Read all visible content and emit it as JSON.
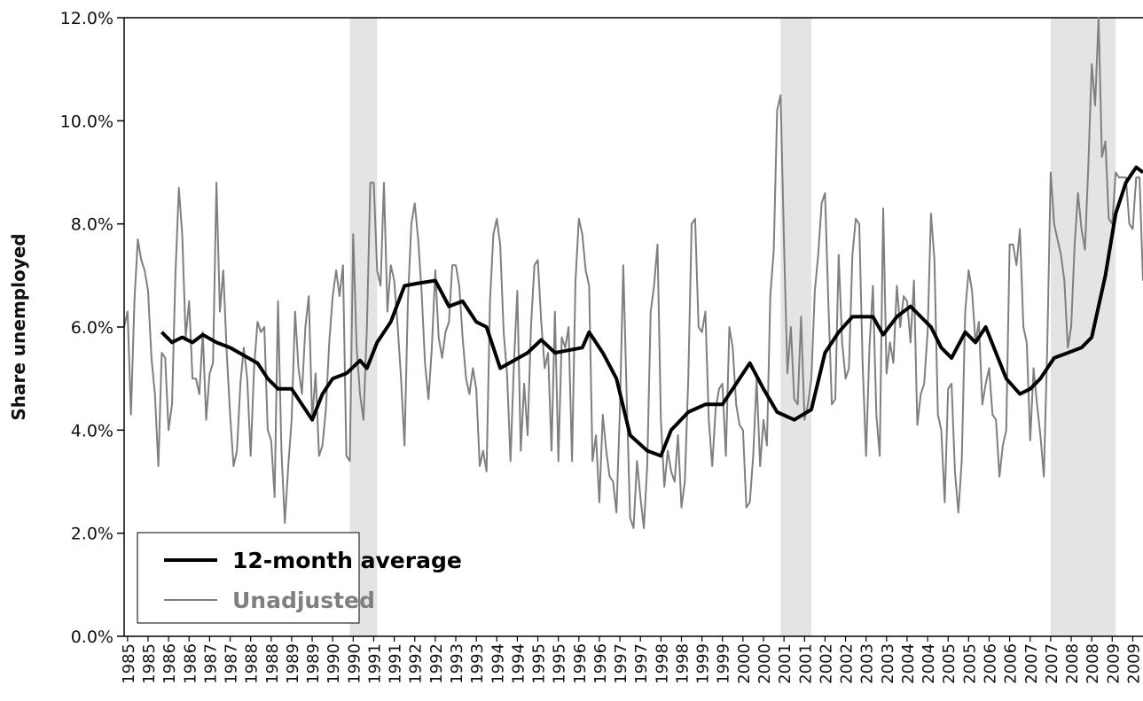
{
  "chart_data": {
    "type": "line",
    "y_label": "Share unemployed",
    "xlim": [
      0,
      298
    ],
    "xticks": [
      {
        "value": 1,
        "label": "1985"
      },
      {
        "value": 7,
        "label": "1985"
      },
      {
        "value": 13,
        "label": "1986"
      },
      {
        "value": 19,
        "label": "1986"
      },
      {
        "value": 25,
        "label": "1987"
      },
      {
        "value": 31,
        "label": "1987"
      },
      {
        "value": 37,
        "label": "1988"
      },
      {
        "value": 43,
        "label": "1988"
      },
      {
        "value": 49,
        "label": "1989"
      },
      {
        "value": 55,
        "label": "1989"
      },
      {
        "value": 61,
        "label": "1990"
      },
      {
        "value": 67,
        "label": "1990"
      },
      {
        "value": 73,
        "label": "1991"
      },
      {
        "value": 79,
        "label": "1991"
      },
      {
        "value": 85,
        "label": "1992"
      },
      {
        "value": 91,
        "label": "1992"
      },
      {
        "value": 97,
        "label": "1993"
      },
      {
        "value": 103,
        "label": "1993"
      },
      {
        "value": 109,
        "label": "1994"
      },
      {
        "value": 115,
        "label": "1994"
      },
      {
        "value": 121,
        "label": "1995"
      },
      {
        "value": 127,
        "label": "1995"
      },
      {
        "value": 133,
        "label": "1996"
      },
      {
        "value": 139,
        "label": "1996"
      },
      {
        "value": 145,
        "label": "1997"
      },
      {
        "value": 151,
        "label": "1997"
      },
      {
        "value": 157,
        "label": "1998"
      },
      {
        "value": 163,
        "label": "1998"
      },
      {
        "value": 169,
        "label": "1999"
      },
      {
        "value": 175,
        "label": "1999"
      },
      {
        "value": 181,
        "label": "2000"
      },
      {
        "value": 187,
        "label": "2000"
      },
      {
        "value": 193,
        "label": "2001"
      },
      {
        "value": 199,
        "label": "2001"
      },
      {
        "value": 205,
        "label": "2002"
      },
      {
        "value": 211,
        "label": "2002"
      },
      {
        "value": 217,
        "label": "2003"
      },
      {
        "value": 223,
        "label": "2003"
      },
      {
        "value": 229,
        "label": "2004"
      },
      {
        "value": 235,
        "label": "2004"
      },
      {
        "value": 241,
        "label": "2005"
      },
      {
        "value": 247,
        "label": "2005"
      },
      {
        "value": 253,
        "label": "2006"
      },
      {
        "value": 259,
        "label": "2006"
      },
      {
        "value": 265,
        "label": "2007"
      },
      {
        "value": 271,
        "label": "2007"
      },
      {
        "value": 277,
        "label": "2008"
      },
      {
        "value": 283,
        "label": "2008"
      },
      {
        "value": 289,
        "label": "2009"
      },
      {
        "value": 295,
        "label": "2009"
      }
    ],
    "ylim": [
      0,
      12
    ],
    "yticks": [
      {
        "value": 0,
        "label": "0.0%"
      },
      {
        "value": 2,
        "label": "2.0%"
      },
      {
        "value": 4,
        "label": "4.0%"
      },
      {
        "value": 6,
        "label": "6.0%"
      },
      {
        "value": 8,
        "label": "8.0%"
      },
      {
        "value": 10,
        "label": "10.0%"
      },
      {
        "value": 12,
        "label": "12.0%"
      }
    ],
    "recessions": [
      [
        66,
        74
      ],
      [
        192,
        201
      ],
      [
        271,
        290
      ]
    ],
    "recession_color": "#e4e4e4",
    "series": [
      {
        "name": "12-month average",
        "color": "#000000",
        "width": 4,
        "x": [
          11,
          14,
          17,
          20,
          23,
          27,
          31,
          35,
          39,
          42,
          45,
          49,
          52,
          55,
          58,
          61,
          65,
          69,
          71,
          74,
          78,
          82,
          86,
          91,
          95,
          99,
          103,
          106,
          110,
          114,
          118,
          122,
          126,
          130,
          134,
          136,
          140,
          144,
          148,
          153,
          157,
          160,
          165,
          170,
          175,
          179,
          183,
          187,
          191,
          196,
          201,
          205,
          209,
          213,
          219,
          222,
          226,
          230,
          233,
          236,
          239,
          242,
          246,
          249,
          252,
          255,
          258,
          262,
          265,
          268,
          272,
          276,
          280,
          283,
          287,
          290,
          293,
          296,
          298
        ],
        "values": [
          5.9,
          5.7,
          5.8,
          5.7,
          5.85,
          5.7,
          5.6,
          5.45,
          5.3,
          5.0,
          4.8,
          4.8,
          4.5,
          4.2,
          4.7,
          5.0,
          5.1,
          5.35,
          5.2,
          5.7,
          6.1,
          6.8,
          6.85,
          6.9,
          6.4,
          6.5,
          6.1,
          6.0,
          5.2,
          5.35,
          5.5,
          5.75,
          5.5,
          5.55,
          5.6,
          5.9,
          5.5,
          5.0,
          3.9,
          3.6,
          3.5,
          4.0,
          4.35,
          4.5,
          4.5,
          4.9,
          5.3,
          4.8,
          4.35,
          4.2,
          4.4,
          5.5,
          5.9,
          6.2,
          6.2,
          5.85,
          6.2,
          6.4,
          6.2,
          6.0,
          5.6,
          5.4,
          5.9,
          5.7,
          6.0,
          5.5,
          5.0,
          4.7,
          4.8,
          5.0,
          5.4,
          5.5,
          5.6,
          5.8,
          7.0,
          8.2,
          8.8,
          9.1,
          9.0
        ]
      },
      {
        "name": "Unadjusted",
        "color": "#7f7f7f",
        "width": 2,
        "values": [
          6.0,
          6.3,
          4.3,
          6.5,
          7.7,
          7.3,
          7.1,
          6.7,
          5.4,
          4.7,
          3.3,
          5.5,
          5.4,
          4.0,
          4.5,
          7.0,
          8.7,
          7.8,
          5.8,
          6.5,
          5.0,
          5.0,
          4.7,
          5.9,
          4.2,
          5.1,
          5.3,
          8.8,
          6.3,
          7.1,
          5.5,
          4.3,
          3.3,
          3.6,
          4.9,
          5.6,
          5.0,
          3.5,
          5.2,
          6.1,
          5.9,
          6.0,
          4.0,
          3.8,
          2.7,
          6.5,
          3.6,
          2.2,
          3.3,
          4.2,
          6.3,
          5.2,
          4.7,
          6.0,
          6.6,
          4.2,
          5.1,
          3.5,
          3.7,
          4.4,
          5.7,
          6.6,
          7.1,
          6.6,
          7.2,
          3.5,
          3.4,
          7.8,
          5.6,
          4.7,
          4.2,
          6.0,
          8.8,
          8.8,
          7.1,
          6.8,
          8.8,
          6.3,
          7.2,
          6.9,
          6.0,
          5.0,
          3.7,
          6.5,
          8.0,
          8.4,
          7.7,
          6.7,
          5.3,
          4.6,
          5.6,
          7.1,
          5.8,
          5.4,
          5.9,
          6.1,
          7.2,
          7.2,
          6.8,
          5.8,
          5.0,
          4.7,
          5.2,
          4.8,
          3.3,
          3.6,
          3.2,
          6.5,
          7.8,
          8.1,
          7.6,
          5.9,
          5.1,
          3.4,
          5.3,
          6.7,
          3.6,
          4.9,
          3.9,
          6.0,
          7.2,
          7.3,
          6.1,
          5.2,
          5.5,
          3.6,
          6.3,
          3.4,
          5.8,
          5.6,
          6.0,
          3.4,
          6.9,
          8.1,
          7.8,
          7.1,
          6.8,
          3.4,
          3.9,
          2.6,
          4.3,
          3.6,
          3.1,
          3.0,
          2.4,
          4.4,
          7.2,
          4.6,
          2.3,
          2.1,
          3.4,
          2.7,
          2.1,
          3.3,
          6.3,
          6.8,
          7.6,
          4.2,
          2.9,
          3.6,
          3.2,
          3.0,
          3.9,
          2.5,
          3.0,
          5.0,
          8.0,
          8.1,
          6.0,
          5.9,
          6.3,
          4.2,
          3.3,
          4.4,
          4.8,
          4.9,
          3.5,
          6.0,
          5.6,
          4.5,
          4.1,
          4.0,
          2.5,
          2.6,
          3.5,
          5.0,
          3.3,
          4.2,
          3.7,
          6.6,
          7.5,
          10.2,
          10.5,
          7.6,
          5.1,
          6.0,
          4.6,
          4.5,
          6.2,
          4.2,
          4.5,
          5.0,
          6.7,
          7.4,
          8.4,
          8.6,
          6.4,
          4.5,
          4.6,
          7.4,
          5.7,
          5.0,
          5.2,
          7.4,
          8.1,
          8.0,
          5.3,
          3.5,
          5.6,
          6.8,
          4.3,
          3.5,
          8.3,
          5.1,
          5.7,
          5.3,
          6.8,
          6.0,
          6.6,
          6.5,
          5.7,
          6.9,
          4.1,
          4.7,
          4.9,
          5.9,
          8.2,
          7.3,
          4.3,
          4.0,
          2.6,
          4.8,
          4.9,
          3.2,
          2.4,
          3.4,
          6.3,
          7.1,
          6.7,
          5.7,
          6.1,
          4.5,
          4.9,
          5.2,
          4.3,
          4.2,
          3.1,
          3.7,
          4.0,
          7.6,
          7.6,
          7.2,
          7.9,
          6.0,
          5.7,
          3.8,
          5.2,
          4.5,
          3.9,
          3.1,
          5.6,
          9.0,
          8.0,
          7.7,
          7.4,
          6.9,
          5.6,
          6.0,
          7.6,
          8.6,
          7.9,
          7.5,
          9.1,
          11.1,
          10.3,
          12.0,
          9.3,
          9.6,
          8.1,
          8.0,
          9.0,
          8.9,
          8.9,
          8.9,
          8.0,
          7.9,
          8.9,
          8.9,
          6.9
        ]
      }
    ]
  }
}
